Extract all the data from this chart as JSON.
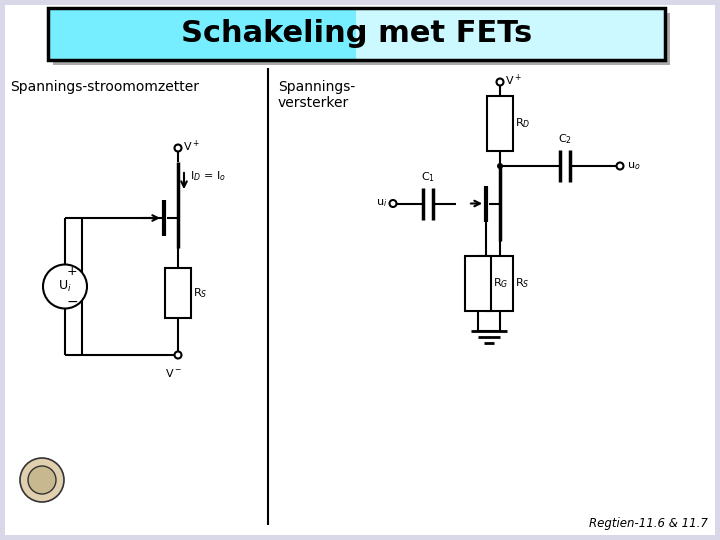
{
  "title": "Schakeling met FETs",
  "subtitle_left": "Spannings-stroomomzetter",
  "subtitle_right_1": "Spannings-",
  "subtitle_right_2": "versterker",
  "footer": "Regtien-11.6 & 11.7",
  "bg_color": "#d8d8e8",
  "title_bg_left": "#88eeff",
  "title_bg_right": "#eafaff",
  "title_border": "#000000",
  "shadow_color": "#aaaaaa",
  "line_color": "#000000",
  "line_width": 1.5
}
